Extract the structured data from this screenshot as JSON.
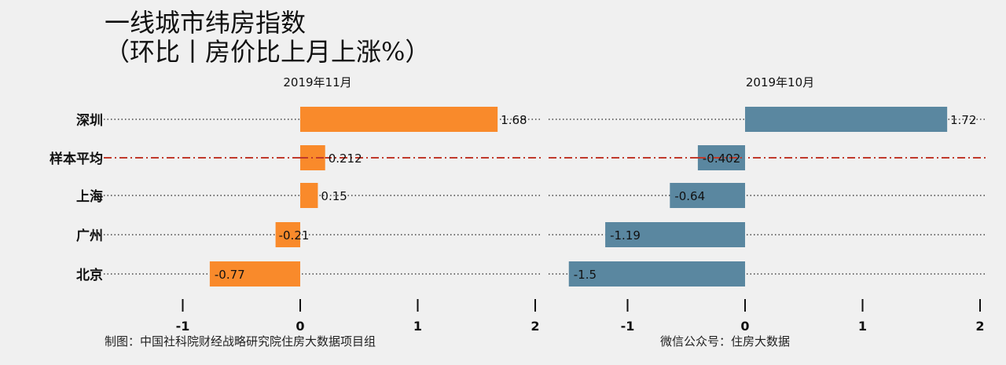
{
  "title_line1": "一线城市纬房指数",
  "title_line2": "（环比丨房价比上月上涨%）",
  "footer_left": "制图：中国社科院财经战略研究院住房大数据项目组",
  "footer_right": "微信公众号：住房大数据",
  "chart_data": [
    {
      "type": "bar",
      "orientation": "horizontal",
      "title": "2019年11月",
      "categories": [
        "深圳",
        "样本平均",
        "上海",
        "广州",
        "北京"
      ],
      "values": [
        1.68,
        0.212,
        0.15,
        -0.21,
        -0.77
      ],
      "value_labels": [
        "1.68",
        "0.212",
        "0.15",
        "-0.21",
        "-0.77"
      ],
      "xlim": [
        -1,
        2
      ],
      "xticks": [
        -1,
        0,
        1,
        2
      ],
      "xtick_labels": [
        "-1",
        "0",
        "1",
        "2"
      ],
      "color": "#f98a2b",
      "reference_category": "样本平均",
      "reference_line_color": "#c0392b"
    },
    {
      "type": "bar",
      "orientation": "horizontal",
      "title": "2019年10月",
      "categories": [
        "深圳",
        "样本平均",
        "上海",
        "广州",
        "北京"
      ],
      "values": [
        1.72,
        -0.402,
        -0.64,
        -1.19,
        -1.5
      ],
      "value_labels": [
        "1.72",
        "-0.402",
        "-0.64",
        "-1.19",
        "-1.5"
      ],
      "xlim": [
        -1,
        2
      ],
      "xticks": [
        -1,
        0,
        1,
        2
      ],
      "xtick_labels": [
        "-1",
        "0",
        "1",
        "2"
      ],
      "color": "#5a87a0",
      "reference_category": "样本平均",
      "reference_line_color": "#c0392b"
    }
  ]
}
